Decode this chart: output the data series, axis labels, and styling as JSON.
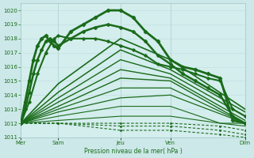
{
  "bg_color": "#cce8e8",
  "plot_bg_color": "#d4eded",
  "grid_color_major": "#aacccc",
  "grid_color_minor": "#c0dede",
  "line_color": "#1a6b1a",
  "tick_label_color": "#1a6b1a",
  "ylim": [
    1011,
    1020.5
  ],
  "yticks": [
    1011,
    1012,
    1013,
    1014,
    1015,
    1016,
    1017,
    1018,
    1019,
    1020
  ],
  "xlim": [
    0,
    108
  ],
  "xlabel": "Pression niveau de la mer( hPa )",
  "xtick_positions": [
    0,
    18,
    48,
    72,
    108
  ],
  "xtick_labels": [
    "Mer",
    "Sam",
    "Jeu",
    "Ven",
    "Dim"
  ],
  "vline_positions": [
    0,
    18,
    48,
    72,
    108
  ],
  "series": [
    {
      "x": [
        0,
        2,
        4,
        6,
        8,
        10,
        12,
        14,
        16,
        18,
        24,
        30,
        36,
        42,
        48,
        54,
        60,
        66,
        72,
        78,
        84,
        90,
        96,
        102,
        108
      ],
      "y": [
        1012.0,
        1013.5,
        1015.0,
        1016.5,
        1017.5,
        1018.0,
        1018.2,
        1017.8,
        1017.5,
        1017.3,
        1018.5,
        1019.0,
        1019.5,
        1020.0,
        1020.0,
        1019.5,
        1018.5,
        1017.8,
        1016.5,
        1016.0,
        1015.8,
        1015.5,
        1015.2,
        1012.2,
        1012.0
      ],
      "lw": 2.0,
      "marker": "D",
      "ms": 2.2,
      "dashed": false
    },
    {
      "x": [
        0,
        2,
        4,
        6,
        8,
        10,
        12,
        14,
        16,
        18,
        24,
        30,
        36,
        42,
        48,
        54,
        60,
        66,
        72,
        78,
        84,
        90,
        96,
        102,
        108
      ],
      "y": [
        1012.0,
        1013.0,
        1014.2,
        1015.5,
        1016.5,
        1017.2,
        1017.8,
        1018.0,
        1017.8,
        1017.5,
        1018.0,
        1018.5,
        1018.8,
        1019.0,
        1018.8,
        1018.5,
        1017.8,
        1016.8,
        1016.2,
        1015.5,
        1015.0,
        1014.5,
        1014.0,
        1012.5,
        1012.0
      ],
      "lw": 1.8,
      "marker": "D",
      "ms": 2.0,
      "dashed": false
    },
    {
      "x": [
        0,
        4,
        8,
        12,
        16,
        18,
        24,
        30,
        36,
        42,
        48,
        54,
        60,
        66,
        72,
        78,
        84,
        90,
        96,
        102,
        108
      ],
      "y": [
        1012.0,
        1013.5,
        1015.5,
        1017.0,
        1018.0,
        1018.2,
        1018.0,
        1018.0,
        1018.0,
        1017.8,
        1017.5,
        1017.2,
        1016.8,
        1016.2,
        1016.0,
        1015.8,
        1015.5,
        1015.2,
        1015.0,
        1013.0,
        1012.5
      ],
      "lw": 1.5,
      "marker": "D",
      "ms": 1.8,
      "dashed": false
    },
    {
      "x": [
        0,
        18,
        48,
        72,
        108
      ],
      "y": [
        1012.0,
        1014.8,
        1018.0,
        1016.5,
        1013.0
      ],
      "lw": 1.2,
      "marker": null,
      "ms": 0,
      "dashed": false
    },
    {
      "x": [
        0,
        18,
        48,
        72,
        108
      ],
      "y": [
        1012.0,
        1014.2,
        1017.2,
        1015.8,
        1012.8
      ],
      "lw": 1.1,
      "marker": null,
      "ms": 0,
      "dashed": false
    },
    {
      "x": [
        0,
        18,
        48,
        72,
        108
      ],
      "y": [
        1012.0,
        1013.8,
        1016.5,
        1015.5,
        1012.5
      ],
      "lw": 1.0,
      "marker": null,
      "ms": 0,
      "dashed": false
    },
    {
      "x": [
        0,
        18,
        48,
        72,
        108
      ],
      "y": [
        1012.0,
        1013.5,
        1015.8,
        1015.2,
        1012.2
      ],
      "lw": 1.0,
      "marker": null,
      "ms": 0,
      "dashed": false
    },
    {
      "x": [
        0,
        18,
        48,
        72,
        108
      ],
      "y": [
        1012.0,
        1013.2,
        1015.2,
        1015.0,
        1012.0
      ],
      "lw": 1.0,
      "marker": null,
      "ms": 0,
      "dashed": false
    },
    {
      "x": [
        0,
        18,
        48,
        72,
        108
      ],
      "y": [
        1012.0,
        1013.0,
        1014.5,
        1014.5,
        1012.0
      ],
      "lw": 0.9,
      "marker": null,
      "ms": 0,
      "dashed": false
    },
    {
      "x": [
        0,
        18,
        48,
        72,
        108
      ],
      "y": [
        1012.0,
        1012.8,
        1013.8,
        1014.0,
        1012.0
      ],
      "lw": 0.9,
      "marker": null,
      "ms": 0,
      "dashed": false
    },
    {
      "x": [
        0,
        18,
        48,
        72,
        96,
        108
      ],
      "y": [
        1012.0,
        1012.5,
        1013.2,
        1013.2,
        1012.0,
        1012.0
      ],
      "lw": 0.8,
      "marker": null,
      "ms": 0,
      "dashed": false
    },
    {
      "x": [
        0,
        18,
        48,
        72,
        96,
        108
      ],
      "y": [
        1012.0,
        1012.2,
        1012.5,
        1012.5,
        1012.0,
        1011.8
      ],
      "lw": 0.8,
      "marker": null,
      "ms": 0,
      "dashed": false
    },
    {
      "x": [
        0,
        18,
        48,
        72,
        96,
        108
      ],
      "y": [
        1012.0,
        1012.0,
        1012.0,
        1012.0,
        1011.8,
        1011.5
      ],
      "lw": 0.8,
      "marker": ".",
      "ms": 2.0,
      "dashed": true
    },
    {
      "x": [
        0,
        18,
        48,
        72,
        96,
        108
      ],
      "y": [
        1012.0,
        1012.0,
        1011.8,
        1011.8,
        1011.5,
        1011.2
      ],
      "lw": 0.8,
      "marker": ".",
      "ms": 2.0,
      "dashed": true
    },
    {
      "x": [
        0,
        18,
        48,
        72,
        96,
        108
      ],
      "y": [
        1012.0,
        1012.0,
        1011.5,
        1011.5,
        1011.2,
        1011.0
      ],
      "lw": 0.8,
      "marker": ".",
      "ms": 2.0,
      "dashed": true
    }
  ]
}
